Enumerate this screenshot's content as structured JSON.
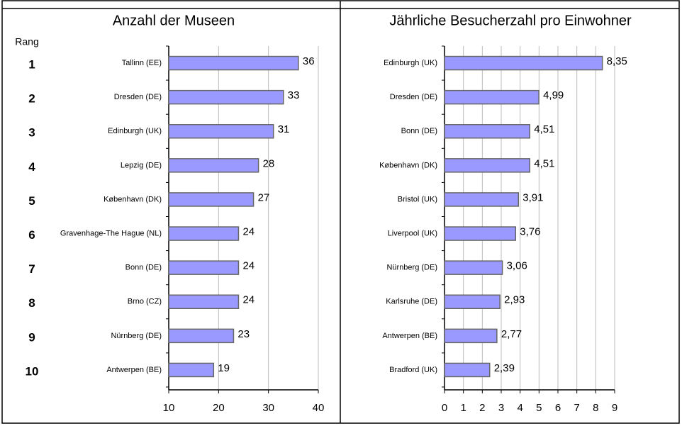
{
  "table": {
    "rank_header": "Rang",
    "ranks": [
      1,
      2,
      3,
      4,
      5,
      6,
      7,
      8,
      9,
      10
    ]
  },
  "chart_data": [
    {
      "type": "bar",
      "orientation": "horizontal",
      "title": "Anzahl der Museen",
      "categories": [
        "Tallinn (EE)",
        "Dresden (DE)",
        "Edinburgh (UK)",
        "Lepzig (DE)",
        "København (DK)",
        "Gravenhage-The Hague (NL)",
        "Bonn (DE)",
        "Brno (CZ)",
        "Nürnberg (DE)",
        "Antwerpen (BE)"
      ],
      "values": [
        36,
        33,
        31,
        28,
        27,
        24,
        24,
        24,
        23,
        19
      ],
      "color": "#9999ff",
      "xlim": [
        10,
        40
      ],
      "xticks": [
        10,
        20,
        30,
        40
      ],
      "grid": true
    },
    {
      "type": "bar",
      "orientation": "horizontal",
      "title": "Jährliche Besucherzahl pro Einwohner",
      "categories": [
        "Edinburgh (UK)",
        "Dresden (DE)",
        "Bonn (DE)",
        "København (DK)",
        "Bristol (UK)",
        "Liverpool (UK)",
        "Nürnberg (DE)",
        "Karlsruhe (DE)",
        "Antwerpen (BE)",
        "Bradford (UK)"
      ],
      "values": [
        8.35,
        4.99,
        4.51,
        4.51,
        3.91,
        3.76,
        3.06,
        2.93,
        2.77,
        2.39
      ],
      "value_labels": [
        "8,35",
        "4,99",
        "4,51",
        "4,51",
        "3,91",
        "3,76",
        "3,06",
        "2,93",
        "2,77",
        "2,39"
      ],
      "color": "#9999ff",
      "xlim": [
        0,
        9
      ],
      "xticks": [
        0,
        1,
        2,
        3,
        4,
        5,
        6,
        7,
        8,
        9
      ],
      "grid": true
    }
  ]
}
